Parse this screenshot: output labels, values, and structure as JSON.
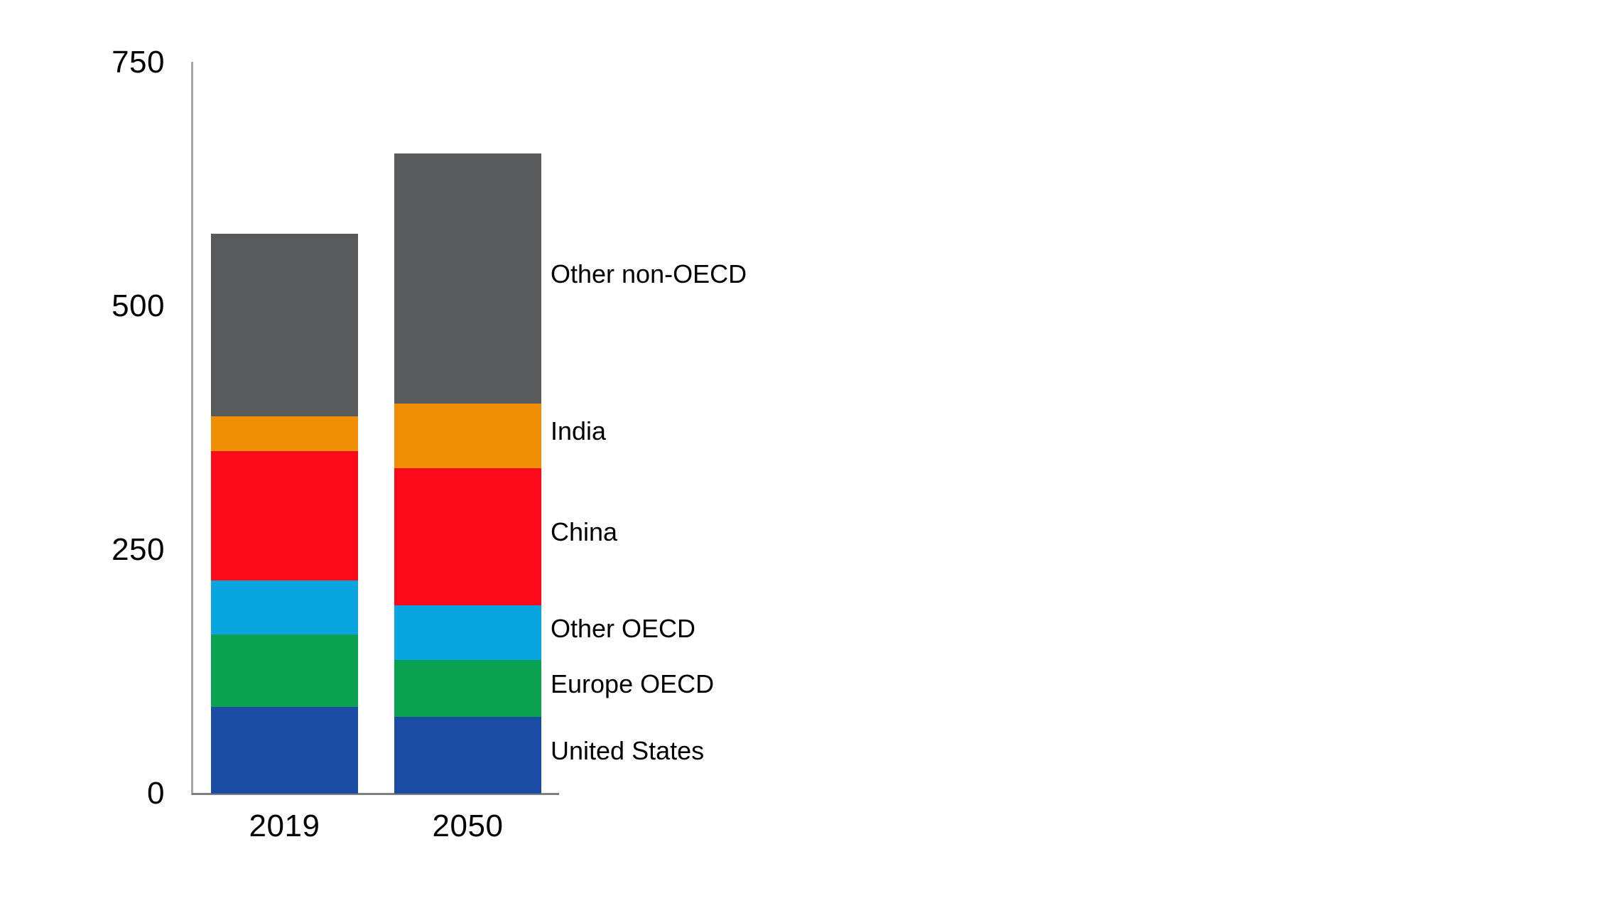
{
  "chart_data": {
    "type": "bar",
    "stacked": true,
    "title": "",
    "xlabel": "",
    "ylabel": "",
    "categories": [
      "2019",
      "2050"
    ],
    "series": [
      {
        "name": "United States",
        "color": "#1A4CA3",
        "values": [
          89,
          79
        ]
      },
      {
        "name": "Europe OECD",
        "color": "#0AA150",
        "values": [
          74,
          58
        ]
      },
      {
        "name": "Other OECD",
        "color": "#09A5E0",
        "values": [
          56,
          56
        ]
      },
      {
        "name": "China",
        "color": "#FB0A1A",
        "values": [
          132,
          141
        ]
      },
      {
        "name": "India",
        "color": "#EE8F05",
        "values": [
          36,
          66
        ]
      },
      {
        "name": "Other non-OECD",
        "color": "#595A5C",
        "values": [
          187,
          257
        ]
      }
    ],
    "totals": [
      574,
      657
    ],
    "yticks": [
      0,
      250,
      500,
      750
    ],
    "ylim": [
      0,
      750
    ],
    "grid": false,
    "legend_position": "right-of-2050-bar-segment-centers",
    "axis_colors": {
      "y_axis": "#A6A6A6",
      "x_axis": "#7F7F7F"
    },
    "text_color": "#000000"
  }
}
